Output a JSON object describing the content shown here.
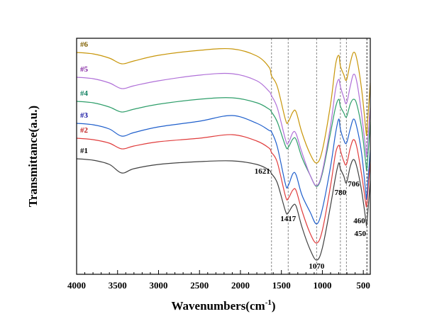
{
  "chart_data": {
    "type": "line",
    "title": "",
    "xlabel": "Wavenumbers(cm",
    "xlabel_sup": "-1",
    "xlabel_suffix": ")",
    "ylabel": "Transmittance(a.u.)",
    "xlim": [
      4000,
      415
    ],
    "ylim": [
      0,
      333
    ],
    "x_reversed": true,
    "grid": false,
    "x_ticks": [
      4000,
      3500,
      3000,
      2500,
      2000,
      1500,
      1000,
      500
    ],
    "x_tick_labels": [
      "4000",
      "3500",
      "3000",
      "2500",
      "2000",
      "1500",
      "1000",
      "500"
    ],
    "x_minor_step": 100,
    "y_ticks": [],
    "x": [
      4000,
      3800,
      3600,
      3450,
      3300,
      3000,
      2500,
      2100,
      1800,
      1650,
      1621,
      1550,
      1450,
      1417,
      1360,
      1320,
      1250,
      1150,
      1070,
      1000,
      900,
      840,
      800,
      780,
      740,
      706,
      660,
      620,
      580,
      520,
      470,
      460,
      445,
      415
    ],
    "series": [
      {
        "name": "#1",
        "color": "#404040",
        "values": [
          163,
          161,
          155,
          143,
          149,
          155,
          159,
          160,
          155,
          147,
          142,
          129,
          89,
          87,
          97,
          96,
          67,
          35,
          20,
          37,
          97,
          137,
          157,
          149,
          139,
          129,
          152,
          162,
          152,
          117,
          77,
          69,
          87,
          132
        ]
      },
      {
        "name": "#2",
        "color": "#e03c3c",
        "values": [
          192,
          190,
          185,
          177,
          181,
          187,
          192,
          197,
          188,
          178,
          172,
          158,
          110,
          107,
          119,
          118,
          90,
          58,
          44,
          62,
          125,
          170,
          182,
          175,
          160,
          155,
          178,
          190,
          180,
          140,
          100,
          97,
          115,
          160
        ]
      },
      {
        "name": "#3",
        "color": "#1f5fcc",
        "values": [
          213,
          211,
          205,
          195,
          200,
          208,
          216,
          224,
          213,
          203,
          201,
          180,
          127,
          125,
          142,
          140,
          112,
          88,
          71,
          92,
          152,
          198,
          219,
          205,
          190,
          185,
          205,
          219,
          208,
          170,
          115,
          107,
          130,
          175
        ]
      },
      {
        "name": "#4",
        "color": "#2e9e6a",
        "values": [
          244,
          242,
          236,
          229,
          233,
          240,
          247,
          249,
          242,
          233,
          229,
          215,
          181,
          179,
          191,
          190,
          165,
          140,
          124,
          142,
          200,
          235,
          247,
          237,
          228,
          222,
          240,
          247,
          240,
          205,
          157,
          147,
          165,
          215
        ]
      },
      {
        "name": "#5",
        "color": "#b070d8",
        "values": [
          278,
          276,
          270,
          262,
          266,
          273,
          281,
          283,
          273,
          258,
          252,
          235,
          190,
          185,
          200,
          198,
          172,
          140,
          125,
          145,
          210,
          260,
          275,
          265,
          250,
          241,
          265,
          282,
          272,
          225,
          175,
          167,
          190,
          235
        ]
      },
      {
        "name": "#6",
        "color": "#c8960a",
        "values": [
          313,
          311,
          305,
          297,
          301,
          309,
          316,
          318,
          308,
          292,
          280,
          265,
          218,
          215,
          229,
          229,
          200,
          170,
          157,
          175,
          240,
          295,
          309,
          294,
          282,
          274,
          298,
          313,
          304,
          260,
          205,
          197,
          220,
          270
        ]
      }
    ],
    "series_label_colors": {
      "#1": "#000000",
      "#2": "#c01818",
      "#3": "#1010a0",
      "#4": "#108060",
      "#5": "#8020a0",
      "#6": "#806000"
    },
    "reference_lines": [
      1621,
      1417,
      1070,
      780,
      706,
      460,
      450
    ],
    "annotations": [
      {
        "text": "1621",
        "x": 1621,
        "y": 142,
        "anchor": "end"
      },
      {
        "text": "1417",
        "x": 1417,
        "y": 75,
        "anchor": "middle"
      },
      {
        "text": "1070",
        "x": 1070,
        "y": 8,
        "anchor": "middle"
      },
      {
        "text": "780",
        "x": 780,
        "y": 112,
        "anchor": "middle"
      },
      {
        "text": "706",
        "x": 706,
        "y": 124,
        "anchor": "start"
      },
      {
        "text": "460",
        "x": 460,
        "y": 72,
        "anchor": "end"
      },
      {
        "text": "450",
        "x": 450,
        "y": 54,
        "anchor": "end"
      }
    ],
    "legend": "inline-left"
  }
}
